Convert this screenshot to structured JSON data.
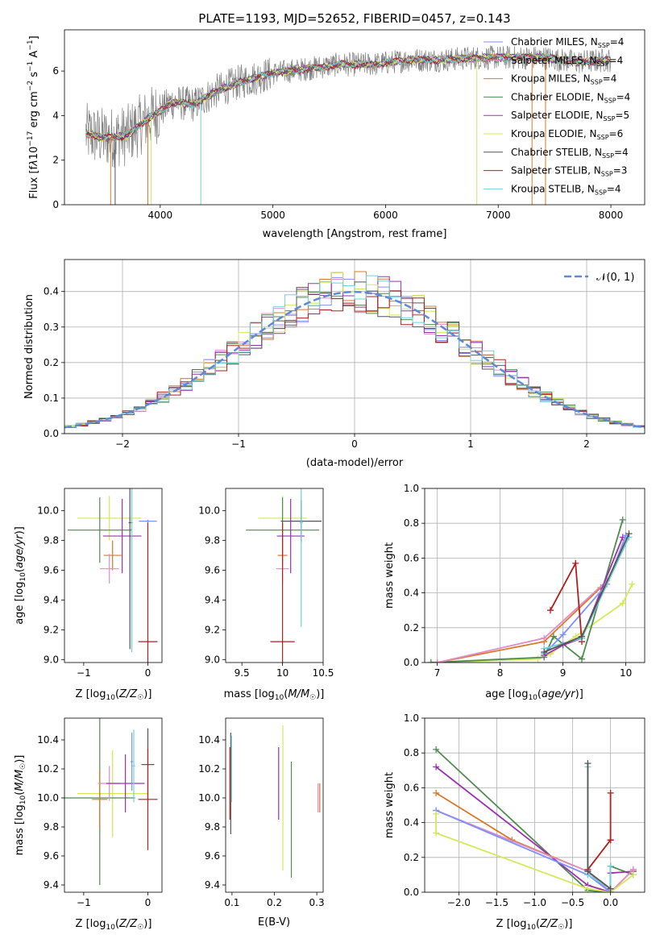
{
  "title": "PLATE=1193, MJD=52652, FIBERID=0457, z=0.143",
  "palette": {
    "Chabrier MILES": "#7e8fff",
    "Salpeter MILES": "#e08cc8",
    "Kroupa MILES": "#d9782a",
    "Chabrier ELODIE": "#4f8a4f",
    "Salpeter ELODIE": "#9b30b0",
    "Kroupa ELODIE": "#d4e85a",
    "Chabrier STELIB": "#555555",
    "Salpeter STELIB": "#b01e1e",
    "Kroupa STELIB": "#70d0d8",
    "data": "#808080",
    "gauss": "#5b8bd6"
  },
  "chart_data": [
    {
      "id": "spectrum",
      "type": "line",
      "xlabel": "wavelength [Angstrom, rest frame]",
      "ylabel": "Flux [f_λ10^-17 erg cm^-2 s^-1 A^-1]",
      "xlim": [
        3150,
        8300
      ],
      "ylim": [
        0,
        7.85
      ],
      "xticks": [
        4000,
        5000,
        6000,
        7000,
        8000
      ],
      "yticks": [
        0,
        2,
        4,
        6
      ],
      "grid": false,
      "legend_position": "upper-right",
      "legend": [
        {
          "name": "Chabrier MILES",
          "nssp": "4"
        },
        {
          "name": "Salpeter MILES",
          "nssp": "4"
        },
        {
          "name": "Kroupa MILES",
          "nssp": "4"
        },
        {
          "name": "Chabrier ELODIE",
          "nssp": "4"
        },
        {
          "name": "Salpeter ELODIE",
          "nssp": "5"
        },
        {
          "name": "Kroupa ELODIE",
          "nssp": "6"
        },
        {
          "name": "Chabrier STELIB",
          "nssp": "4"
        },
        {
          "name": "Salpeter STELIB",
          "nssp": "3"
        },
        {
          "name": "Kroupa STELIB",
          "nssp": "4"
        }
      ],
      "continuum": {
        "x": [
          3340,
          3500,
          3700,
          3900,
          4000,
          4100,
          4300,
          4500,
          4700,
          5000,
          5300,
          5600,
          5900,
          6200,
          6500,
          6800,
          7100,
          7400,
          7700,
          8000
        ],
        "y": [
          3.2,
          3.0,
          3.1,
          3.9,
          4.2,
          4.6,
          4.5,
          5.1,
          5.5,
          5.9,
          6.1,
          6.3,
          6.3,
          6.5,
          6.5,
          6.6,
          6.6,
          6.6,
          6.4,
          6.5
        ]
      }
    },
    {
      "id": "residuals",
      "type": "histogram",
      "xlabel": "(data-model)/error",
      "ylabel": "Normed distribution",
      "xlim": [
        -2.5,
        2.5
      ],
      "ylim": [
        0,
        0.49
      ],
      "xticks": [
        -2,
        -1,
        0,
        1,
        2
      ],
      "yticks": [
        0.0,
        0.1,
        0.2,
        0.3,
        0.4
      ],
      "grid": true,
      "legend_position": "upper-right",
      "legend_label": "𝒩(0, 1)",
      "bin_width": 0.1
    },
    {
      "id": "age-vs-Z",
      "type": "errorbar",
      "xlabel": "Z [log10(Z/Z☉)]",
      "ylabel": "age  [log10(age/yr)]",
      "xlim": [
        -1.3,
        0.22
      ],
      "ylim": [
        8.98,
        10.15
      ],
      "xticks": [
        -1,
        0
      ],
      "yticks": [
        9.0,
        9.2,
        9.4,
        9.6,
        9.8,
        10.0
      ],
      "grid": false,
      "points": [
        {
          "model": "Kroupa ELODIE",
          "x": -0.6,
          "xerr": 0.5,
          "y": 9.95,
          "yerr": 0.15
        },
        {
          "model": "Chabrier ELODIE",
          "x": -0.75,
          "xerr": 0.5,
          "y": 9.87,
          "yerr": 0.22
        },
        {
          "model": "Chabrier MILES",
          "x": 0.0,
          "xerr": 0.14,
          "y": 9.93,
          "yerr": 0.01
        },
        {
          "model": "Salpeter ELODIE",
          "x": -0.4,
          "xerr": 0.3,
          "y": 9.83,
          "yerr": 0.25
        },
        {
          "model": "Kroupa MILES",
          "x": -0.55,
          "xerr": 0.14,
          "y": 9.7,
          "yerr": 0.1
        },
        {
          "model": "Salpeter MILES",
          "x": -0.6,
          "xerr": 0.15,
          "y": 9.61,
          "yerr": 0.1
        },
        {
          "model": "Salpeter STELIB",
          "x": 0.0,
          "xerr": 0.15,
          "y": 9.12,
          "yerr": 0.8
        },
        {
          "model": "Kroupa STELIB",
          "x": -0.25,
          "xerr": 0.02,
          "y": 9.92,
          "yerr": 0.87
        },
        {
          "model": "Chabrier STELIB",
          "x": -0.28,
          "xerr": 0.02,
          "y": 9.92,
          "yerr": 0.85
        }
      ]
    },
    {
      "id": "age-vs-mass",
      "type": "errorbar",
      "xlabel": "mass [log10(M/M☉)]",
      "ylabel": "",
      "xlim": [
        9.3,
        10.5
      ],
      "ylim": [
        8.98,
        10.15
      ],
      "xticks": [
        9.5,
        10.0,
        10.5
      ],
      "yticks": [
        9.0,
        9.2,
        9.4,
        9.6,
        9.8,
        10.0
      ],
      "grid": false,
      "points": [
        {
          "model": "Kroupa ELODIE",
          "x": 10.0,
          "xerr": 0.3,
          "y": 9.95,
          "yerr": 0.15
        },
        {
          "model": "Chabrier ELODIE",
          "x": 10.0,
          "xerr": 0.45,
          "y": 9.87,
          "yerr": 0.22
        },
        {
          "model": "Chabrier STELIB",
          "x": 10.23,
          "xerr": 0.25,
          "y": 9.93,
          "yerr": 0.14
        },
        {
          "model": "Salpeter ELODIE",
          "x": 10.1,
          "xerr": 0.17,
          "y": 9.83,
          "yerr": 0.25
        },
        {
          "model": "Kroupa MILES",
          "x": 10.0,
          "xerr": 0.06,
          "y": 9.7,
          "yerr": 0.1
        },
        {
          "model": "Salpeter MILES",
          "x": 10.0,
          "xerr": 0.08,
          "y": 9.61,
          "yerr": 0.1
        },
        {
          "model": "Salpeter STELIB",
          "x": 10.0,
          "xerr": 0.15,
          "y": 9.12,
          "yerr": 0.8
        },
        {
          "model": "Kroupa STELIB",
          "x": 10.23,
          "xerr": 0.02,
          "y": 9.92,
          "yerr": 0.7
        }
      ]
    },
    {
      "id": "weight-vs-age",
      "type": "line",
      "xlabel": "age  [log10(age/yr)]",
      "ylabel": "mass weight",
      "xlim": [
        6.8,
        10.3
      ],
      "ylim": [
        0,
        1
      ],
      "xticks": [
        7,
        8,
        9,
        10
      ],
      "yticks": [
        0.0,
        0.2,
        0.4,
        0.6,
        0.8,
        1.0
      ],
      "grid": true,
      "series": [
        {
          "model": "Kroupa ELODIE",
          "x": [
            6.9,
            8.6,
            8.8,
            9.2,
            9.95,
            10.1
          ],
          "y": [
            0.0,
            0.02,
            0.05,
            0.15,
            0.34,
            0.45
          ]
        },
        {
          "model": "Chabrier ELODIE",
          "x": [
            6.9,
            8.7,
            8.85,
            9.3,
            9.95
          ],
          "y": [
            0.0,
            0.03,
            0.15,
            0.02,
            0.82
          ]
        },
        {
          "model": "Kroupa MILES",
          "x": [
            7.0,
            8.7,
            9.6
          ],
          "y": [
            0.0,
            0.12,
            0.43
          ]
        },
        {
          "model": "Salpeter MILES",
          "x": [
            7.0,
            8.7,
            9.7
          ],
          "y": [
            0.0,
            0.14,
            0.47
          ]
        },
        {
          "model": "Salpeter ELODIE",
          "x": [
            8.7,
            9.0,
            9.3,
            9.95
          ],
          "y": [
            0.04,
            0.1,
            0.14,
            0.72
          ]
        },
        {
          "model": "Chabrier MILES",
          "x": [
            8.7,
            9.0,
            9.7,
            10.0
          ],
          "y": [
            0.05,
            0.16,
            0.45,
            0.73
          ]
        },
        {
          "model": "Salpeter STELIB",
          "x": [
            8.8,
            9.2,
            9.3
          ],
          "y": [
            0.3,
            0.57,
            0.12
          ]
        },
        {
          "model": "Kroupa STELIB",
          "x": [
            8.7,
            9.3,
            10.05
          ],
          "y": [
            0.08,
            0.14,
            0.72
          ]
        },
        {
          "model": "Chabrier STELIB",
          "x": [
            8.7,
            9.3,
            10.05
          ],
          "y": [
            0.06,
            0.15,
            0.74
          ]
        }
      ]
    },
    {
      "id": "mass-vs-Z",
      "type": "errorbar",
      "xlabel": "Z [log10(Z/Z☉)]",
      "ylabel": "mass [log10(M/M☉)]",
      "xlim": [
        -1.3,
        0.22
      ],
      "ylim": [
        9.35,
        10.55
      ],
      "xticks": [
        -1,
        0
      ],
      "yticks": [
        9.4,
        9.6,
        9.8,
        10.0,
        10.2,
        10.4
      ],
      "grid": false,
      "points": [
        {
          "model": "Kroupa ELODIE",
          "x": -0.55,
          "xerr": 0.55,
          "y": 10.03,
          "yerr": 0.3
        },
        {
          "model": "Chabrier ELODIE",
          "x": -0.75,
          "xerr": 0.55,
          "y": 10.0,
          "yerr": 0.6
        },
        {
          "model": "Kroupa MILES",
          "x": -0.75,
          "xerr": 0.12,
          "y": 9.99,
          "yerr": 0.2
        },
        {
          "model": "Salpeter MILES",
          "x": -0.6,
          "xerr": 0.18,
          "y": 10.1,
          "yerr": 0.12
        },
        {
          "model": "Salpeter ELODIE",
          "x": -0.35,
          "xerr": 0.3,
          "y": 10.1,
          "yerr": 0.2
        },
        {
          "model": "Chabrier STELIB",
          "x": 0.0,
          "xerr": 0.1,
          "y": 10.23,
          "yerr": 0.25
        },
        {
          "model": "Salpeter STELIB",
          "x": 0.0,
          "xerr": 0.15,
          "y": 9.99,
          "yerr": 0.35
        },
        {
          "model": "Kroupa STELIB",
          "x": -0.22,
          "xerr": 0.02,
          "y": 10.22,
          "yerr": 0.25
        },
        {
          "model": "Chabrier MILES",
          "x": -0.25,
          "xerr": 0.02,
          "y": 10.25,
          "yerr": 0.2
        }
      ]
    },
    {
      "id": "mass-vs-ebv",
      "type": "errorbar",
      "xlabel": "E(B-V)",
      "ylabel": "",
      "xlim": [
        0.085,
        0.315
      ],
      "ylim": [
        9.35,
        10.55
      ],
      "xticks": [
        0.1,
        0.2,
        0.3
      ],
      "yticks": [
        9.4,
        9.6,
        9.8,
        10.0,
        10.2,
        10.4
      ],
      "grid": false,
      "points": [
        {
          "model": "Chabrier STELIB",
          "x": 0.097,
          "xerr": 0,
          "y": 10.1,
          "yerr": 0.35
        },
        {
          "model": "Salpeter STELIB",
          "x": 0.095,
          "xerr": 0,
          "y": 10.1,
          "yerr": 0.25
        },
        {
          "model": "Kroupa STELIB",
          "x": 0.099,
          "xerr": 0,
          "y": 10.2,
          "yerr": 0.23
        },
        {
          "model": "Salpeter ELODIE",
          "x": 0.21,
          "xerr": 0,
          "y": 10.1,
          "yerr": 0.25
        },
        {
          "model": "Kroupa ELODIE",
          "x": 0.22,
          "xerr": 0,
          "y": 10.0,
          "yerr": 0.5
        },
        {
          "model": "Chabrier ELODIE",
          "x": 0.24,
          "xerr": 0,
          "y": 9.85,
          "yerr": 0.4
        },
        {
          "model": "Salpeter MILES",
          "x": 0.303,
          "xerr": 0,
          "y": 10.0,
          "yerr": 0.1
        },
        {
          "model": "Kroupa MILES",
          "x": 0.307,
          "xerr": 0,
          "y": 10.0,
          "yerr": 0.1
        }
      ]
    },
    {
      "id": "weight-vs-Z",
      "type": "line",
      "xlabel": "Z [log10(Z/Z☉)]",
      "ylabel": "mass weight",
      "xlim": [
        -2.45,
        0.45
      ],
      "ylim": [
        0,
        1
      ],
      "xticks": [
        -2.0,
        -1.5,
        -1.0,
        -0.5,
        0.0
      ],
      "yticks": [
        0.0,
        0.2,
        0.4,
        0.6,
        0.8,
        1.0
      ],
      "grid": true,
      "series": [
        {
          "model": "Chabrier ELODIE",
          "x": [
            -2.3,
            -0.3,
            0.0,
            0.0,
            0.3
          ],
          "y": [
            0.82,
            0.01,
            0.0,
            0.15,
            0.1
          ]
        },
        {
          "model": "Salpeter ELODIE",
          "x": [
            -2.3,
            -0.3,
            0.0,
            0.0,
            0.3
          ],
          "y": [
            0.72,
            0.04,
            0.0,
            0.11,
            0.12
          ]
        },
        {
          "model": "Kroupa MILES",
          "x": [
            -2.3,
            -1.3,
            -0.3,
            0.0,
            0.3
          ],
          "y": [
            0.57,
            0.3,
            0.12,
            0.0,
            0.13
          ]
        },
        {
          "model": "Salpeter MILES",
          "x": [
            -2.3,
            -0.3,
            0.0,
            0.3
          ],
          "y": [
            0.47,
            0.12,
            0.0,
            0.13
          ]
        },
        {
          "model": "Chabrier MILES",
          "x": [
            -2.3,
            -0.3,
            0.0
          ],
          "y": [
            0.47,
            0.1,
            0.0
          ]
        },
        {
          "model": "Kroupa ELODIE",
          "x": [
            -2.3,
            -2.3,
            -0.3,
            0.0,
            0.3
          ],
          "y": [
            0.45,
            0.34,
            0.02,
            0.0,
            0.1
          ]
        },
        {
          "model": "Salpeter STELIB",
          "x": [
            -0.3,
            0.0,
            0.0,
            0.0
          ],
          "y": [
            0.13,
            0.3,
            0.57,
            0.3
          ]
        },
        {
          "model": "Kroupa STELIB",
          "x": [
            -0.3,
            -0.3,
            0.0,
            0.0
          ],
          "y": [
            0.72,
            0.1,
            0.02,
            0.15
          ]
        },
        {
          "model": "Chabrier STELIB",
          "x": [
            -0.3,
            -0.3,
            0.0
          ],
          "y": [
            0.74,
            0.12,
            0.02
          ]
        }
      ]
    }
  ]
}
